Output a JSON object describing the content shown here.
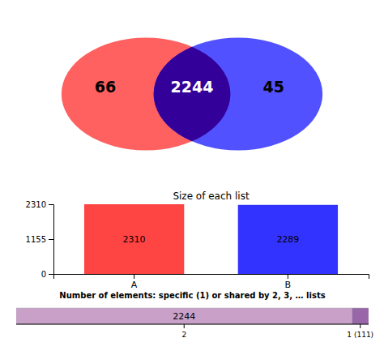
{
  "chart_data": [
    {
      "type": "venn",
      "values": [
        66,
        2244,
        45
      ],
      "colors": [
        "#FF4444",
        "#330099",
        "#3333FF"
      ],
      "data_labels": true
    },
    {
      "type": "bar",
      "title": "Size of each list",
      "categories": [
        "A",
        "B"
      ],
      "values": [
        2310,
        2289
      ],
      "colors": [
        "#FF4444",
        "#3333FF"
      ],
      "ylim": [
        0,
        2310
      ],
      "yticks": [
        0,
        1155,
        2310
      ],
      "data_labels": true
    },
    {
      "type": "bar",
      "orientation": "horizontal",
      "stacked": true,
      "title": "Number of elements: specific (1) or shared by 2, 3, … lists",
      "categories": [
        "2",
        "1 (111)"
      ],
      "values": [
        2244,
        111
      ],
      "value_labels": [
        "2244",
        null
      ],
      "colors": [
        "#C8A0C8",
        "#9966AA"
      ],
      "xlim": [
        0,
        2355
      ],
      "data_labels": true
    }
  ]
}
